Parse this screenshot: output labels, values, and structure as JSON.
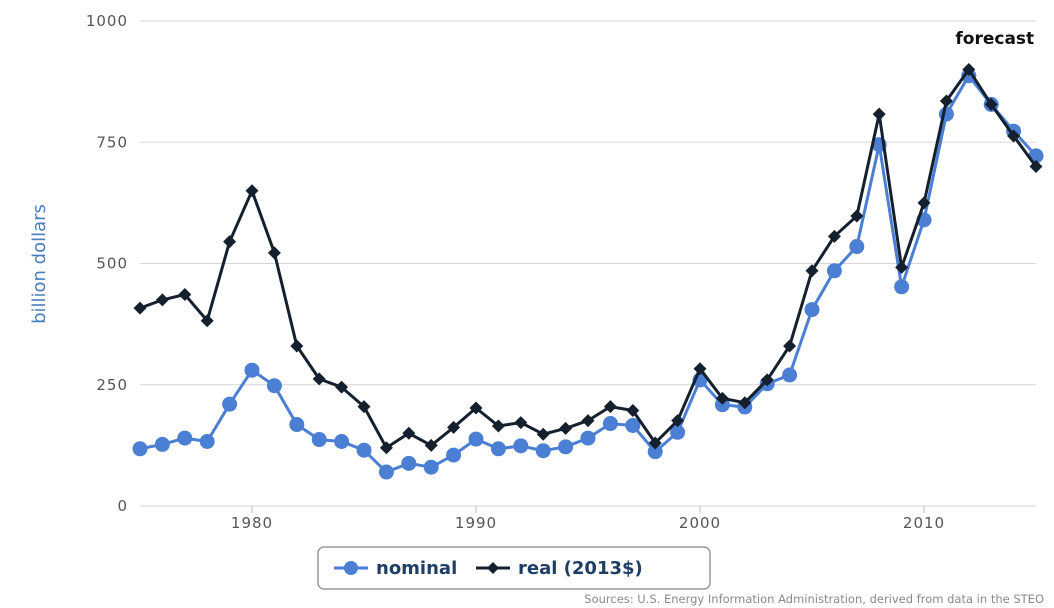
{
  "chart_data": {
    "type": "line",
    "title": "",
    "xlabel": "",
    "ylabel": "billion dollars",
    "xlim": [
      1975,
      2015
    ],
    "ylim": [
      0,
      1000
    ],
    "x_ticks": [
      1980,
      1990,
      2000,
      2010
    ],
    "y_ticks": [
      0,
      250,
      500,
      750,
      1000
    ],
    "grid": "horizontal",
    "legend_position": "bottom-center",
    "annotation": {
      "text": "forecast",
      "x": 2012,
      "y": 965
    },
    "source": "Sources: U.S. Energy Information Administration, derived from data in the STEO",
    "x": [
      1975,
      1976,
      1977,
      1978,
      1979,
      1980,
      1981,
      1982,
      1983,
      1984,
      1985,
      1986,
      1987,
      1988,
      1989,
      1990,
      1991,
      1992,
      1993,
      1994,
      1995,
      1996,
      1997,
      1998,
      1999,
      2000,
      2001,
      2002,
      2003,
      2004,
      2005,
      2006,
      2007,
      2008,
      2009,
      2010,
      2011,
      2012,
      2013,
      2014,
      2015
    ],
    "series": [
      {
        "name": "nominal",
        "color": "#4a7fd4",
        "marker": "circle",
        "values": [
          118,
          127,
          140,
          133,
          210,
          280,
          248,
          168,
          137,
          133,
          115,
          70,
          88,
          80,
          105,
          138,
          118,
          124,
          114,
          122,
          140,
          170,
          166,
          112,
          152,
          260,
          209,
          204,
          252,
          270,
          405,
          485,
          535,
          745,
          452,
          590,
          808,
          887,
          828,
          773,
          722
        ]
      },
      {
        "name": "real (2013$)",
        "color": "#14202e",
        "marker": "diamond",
        "values": [
          408,
          425,
          436,
          382,
          545,
          650,
          522,
          330,
          262,
          245,
          205,
          120,
          150,
          125,
          162,
          202,
          165,
          172,
          148,
          160,
          176,
          205,
          197,
          130,
          176,
          283,
          222,
          213,
          260,
          330,
          485,
          556,
          598,
          808,
          492,
          625,
          835,
          900,
          828,
          763,
          700
        ]
      }
    ]
  }
}
